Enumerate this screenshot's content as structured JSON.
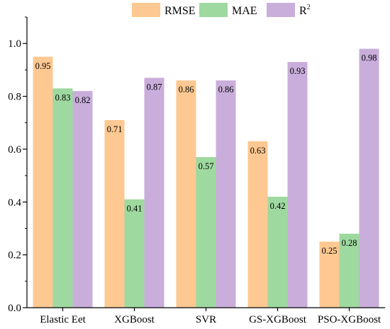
{
  "chart_data": {
    "type": "bar",
    "categories": [
      "Elastic Eet",
      "XGBoost",
      "SVR",
      "GS-XGBoost",
      "PSO-XGBoost"
    ],
    "series": [
      {
        "name": "RMSE",
        "color": "#FDC891",
        "values": [
          0.95,
          0.71,
          0.86,
          0.63,
          0.25
        ]
      },
      {
        "name": "MAE",
        "color": "#9ED9A0",
        "values": [
          0.83,
          0.41,
          0.57,
          0.42,
          0.28
        ]
      },
      {
        "name": "R2",
        "color": "#C9AEDB",
        "values": [
          0.82,
          0.87,
          0.86,
          0.93,
          0.98
        ]
      }
    ],
    "data_labels": [
      [
        "0.95",
        "0.71",
        "0.86",
        "0.63",
        "0.25"
      ],
      [
        "0.83",
        "0.41",
        "0.57",
        "0.42",
        "0.28"
      ],
      [
        "0.82",
        "0.87",
        "0.86",
        "0.93",
        "0.98"
      ]
    ],
    "ylim": [
      0.0,
      1.1
    ],
    "yticks": [
      "0.0",
      "0.2",
      "0.4",
      "0.6",
      "0.8",
      "1.0"
    ],
    "ytick_values": [
      0.0,
      0.2,
      0.4,
      0.6,
      0.8,
      1.0
    ],
    "title": "",
    "xlabel": "",
    "ylabel": "",
    "legend_position": "top-center",
    "grid": false
  }
}
